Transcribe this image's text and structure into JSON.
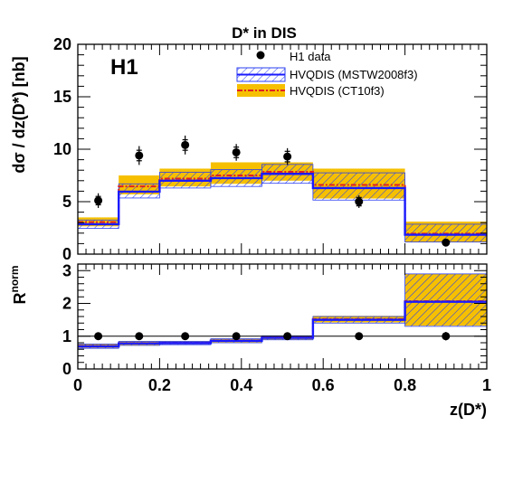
{
  "chart_data": [
    {
      "type": "step",
      "title": "D* in DIS",
      "experiment_label": "H1",
      "xlabel": "z(D*)",
      "ylabel": "dσ / dz(D*) [nb]",
      "xlim": [
        0,
        1
      ],
      "ylim": [
        0,
        20
      ],
      "yticks": [
        0,
        5,
        10,
        15,
        20
      ],
      "xticks": [
        0,
        0.2,
        0.4,
        0.6,
        0.8,
        1
      ],
      "xtick_labels": [
        "0",
        "0.2",
        "0.4",
        "0.6",
        "0.8",
        "1"
      ],
      "legend_position": "top-right",
      "legend": [
        "H1 data",
        "HVQDIS (MSTW2008f3)",
        "HVQDIS (CT10f3)"
      ],
      "bin_edges": [
        0,
        0.1,
        0.2,
        0.325,
        0.45,
        0.575,
        0.8,
        1.0
      ],
      "series": [
        {
          "name": "H1 data",
          "type": "points",
          "x": [
            0.05,
            0.15,
            0.2625,
            0.3875,
            0.5125,
            0.6875,
            0.9
          ],
          "y": [
            5.1,
            9.4,
            10.4,
            9.7,
            9.3,
            5.0,
            1.1
          ],
          "err_total": [
            0.7,
            0.9,
            0.9,
            0.8,
            0.8,
            0.6,
            0.3
          ],
          "err_stat": [
            0.4,
            0.5,
            0.5,
            0.5,
            0.5,
            0.4,
            0.2
          ]
        },
        {
          "name": "HVQDIS (MSTW2008f3)",
          "type": "step-band",
          "central": [
            2.85,
            5.95,
            7.0,
            7.25,
            7.65,
            6.3,
            1.85
          ],
          "lower": [
            2.45,
            5.35,
            6.3,
            6.45,
            6.75,
            5.15,
            1.15
          ],
          "upper": [
            3.25,
            6.7,
            7.8,
            8.05,
            8.55,
            7.75,
            2.85
          ]
        },
        {
          "name": "HVQDIS (CT10f3)",
          "type": "step-band",
          "central": [
            3.05,
            6.45,
            7.2,
            7.5,
            7.85,
            6.6,
            1.95
          ],
          "lower": [
            2.65,
            5.7,
            6.45,
            6.7,
            7.0,
            5.3,
            1.15
          ],
          "upper": [
            3.5,
            7.5,
            8.15,
            8.75,
            8.75,
            8.15,
            3.1
          ]
        }
      ]
    },
    {
      "type": "step",
      "ylabel": "R^norm",
      "ylabel_main": "R",
      "ylabel_sup": "norm",
      "xlabel": "z(D*)",
      "xlim": [
        0,
        1
      ],
      "ylim": [
        0,
        3.2
      ],
      "yticks": [
        0,
        1,
        2,
        3
      ],
      "reference_line": 1,
      "bin_edges": [
        0,
        0.1,
        0.2,
        0.325,
        0.45,
        0.575,
        0.8,
        1.0
      ],
      "series": [
        {
          "name": "H1 data",
          "type": "points",
          "x": [
            0.05,
            0.15,
            0.2625,
            0.3875,
            0.5125,
            0.6875,
            0.9
          ],
          "y": [
            1.0,
            1.0,
            1.0,
            1.0,
            1.0,
            1.0,
            1.0
          ],
          "err_total": [
            0.06,
            0.05,
            0.05,
            0.05,
            0.05,
            0.06,
            0.13
          ],
          "err_stat": [
            0.03,
            0.03,
            0.03,
            0.03,
            0.03,
            0.03,
            0.08
          ]
        },
        {
          "name": "HVQDIS (MSTW2008f3)",
          "type": "step-band",
          "central": [
            0.69,
            0.78,
            0.79,
            0.86,
            0.95,
            1.5,
            2.05
          ],
          "lower": [
            0.63,
            0.72,
            0.74,
            0.8,
            0.89,
            1.4,
            1.3
          ],
          "upper": [
            0.76,
            0.84,
            0.84,
            0.92,
            1.01,
            1.6,
            2.9
          ]
        },
        {
          "name": "HVQDIS (CT10f3)",
          "type": "step-band",
          "central": [
            0.7,
            0.79,
            0.8,
            0.87,
            0.96,
            1.52,
            2.07
          ],
          "lower": [
            0.64,
            0.73,
            0.75,
            0.81,
            0.9,
            1.42,
            1.32
          ],
          "upper": [
            0.77,
            0.85,
            0.85,
            0.93,
            1.02,
            1.62,
            2.9
          ]
        }
      ]
    }
  ]
}
